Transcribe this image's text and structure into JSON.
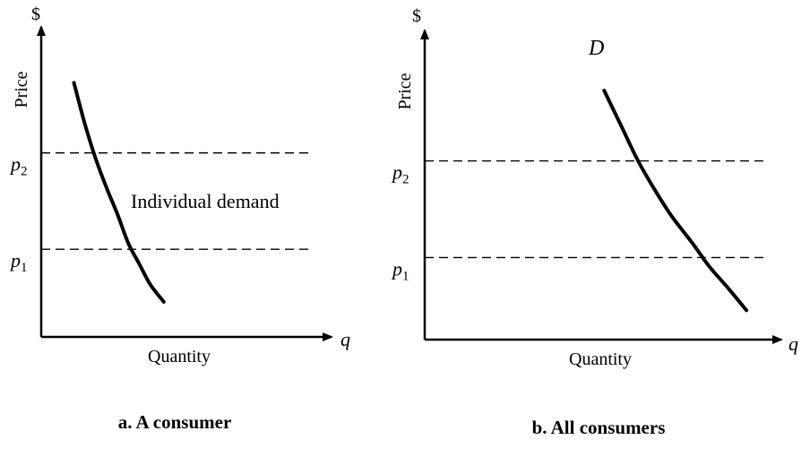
{
  "colors": {
    "ink": "#000000",
    "background": "#ffffff"
  },
  "chart_data": [
    {
      "type": "line",
      "caption": "a. A consumer",
      "y_unit": "$",
      "ylabel": "Price",
      "xlabel": "Quantity",
      "x_symbol": "q",
      "xlim": [
        0,
        10
      ],
      "ylim": [
        0,
        10
      ],
      "reference_lines": [
        {
          "label": "p",
          "sub": "2",
          "y": 6.3
        },
        {
          "label": "p",
          "sub": "1",
          "y": 3.0
        }
      ],
      "series": [
        {
          "name": "Individual demand",
          "x": [
            1.2,
            1.6,
            2.0,
            2.4,
            2.8,
            3.2,
            3.6,
            4.0,
            4.5
          ],
          "y": [
            8.7,
            7.3,
            6.1,
            5.1,
            4.2,
            3.2,
            2.5,
            1.8,
            1.2
          ]
        }
      ],
      "annotations": [
        {
          "text": "Individual demand",
          "x": 3.4,
          "y": 4.4
        }
      ]
    },
    {
      "type": "line",
      "caption": "b. All consumers",
      "y_unit": "$",
      "ylabel": "Price",
      "xlabel": "Quantity",
      "x_symbol": "q",
      "xlim": [
        0,
        10
      ],
      "ylim": [
        0,
        10
      ],
      "reference_lines": [
        {
          "label": "p",
          "sub": "2",
          "y": 6.1
        },
        {
          "label": "p",
          "sub": "1",
          "y": 2.8
        }
      ],
      "series": [
        {
          "name": "D",
          "x": [
            5.3,
            5.8,
            6.3,
            6.8,
            7.3,
            7.9,
            8.4,
            9.0,
            9.5
          ],
          "y": [
            8.5,
            7.3,
            6.1,
            5.1,
            4.2,
            3.3,
            2.5,
            1.7,
            1.0
          ]
        }
      ],
      "annotations": []
    }
  ]
}
